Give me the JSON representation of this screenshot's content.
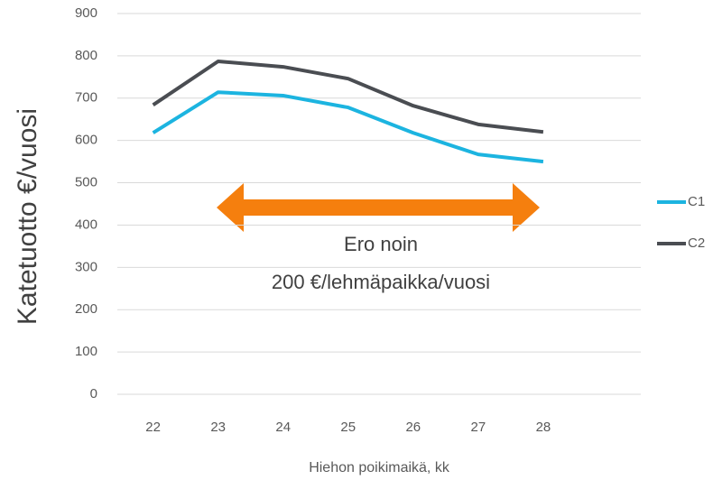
{
  "chart_data": {
    "type": "line",
    "x_label": "Hiehon poikimaikä, kk",
    "y_label": "Katetuotto €/vuosi",
    "annotation": [
      "Ero noin",
      "200 €/lehmäpaikka/vuosi"
    ],
    "x": [
      22,
      23,
      24,
      25,
      26,
      27,
      28
    ],
    "series": [
      {
        "name": "C1",
        "color": "#1cb4e0",
        "values": [
          618,
          714,
          706,
          678,
          618,
          567,
          550
        ]
      },
      {
        "name": "C2",
        "color": "#4a4d52",
        "values": [
          684,
          787,
          774,
          746,
          682,
          638,
          620
        ]
      }
    ],
    "xlim": [
      21.45,
      29.5
    ],
    "xticks": [
      22,
      23,
      24,
      25,
      26,
      27,
      28
    ],
    "ylim": [
      0,
      900
    ],
    "yticks": [
      0,
      100,
      200,
      300,
      400,
      500,
      600,
      700,
      800,
      900
    ],
    "grid": true,
    "legend": "right"
  }
}
